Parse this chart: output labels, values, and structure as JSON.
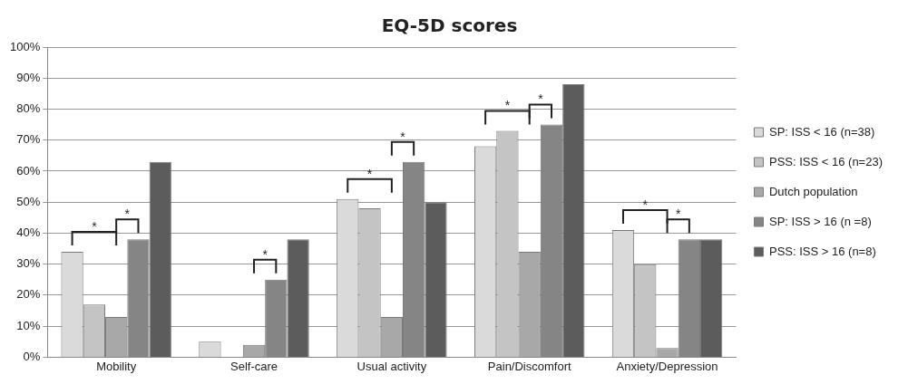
{
  "chart_data": {
    "type": "bar",
    "title": "EQ-5D scores",
    "categories": [
      "Mobility",
      "Self-care",
      "Usual activity",
      "Pain/Discomfort",
      "Anxiety/Depression"
    ],
    "series": [
      {
        "name": "SP: ISS < 16 (n=38)",
        "color": "#dadada",
        "values": [
          34,
          5,
          51,
          68,
          41
        ]
      },
      {
        "name": "PSS: ISS < 16 (n=23)",
        "color": "#c4c4c4",
        "values": [
          17,
          0,
          48,
          73,
          30
        ]
      },
      {
        "name": "Dutch population",
        "color": "#a8a8a8",
        "values": [
          13,
          4,
          13,
          34,
          3
        ]
      },
      {
        "name": "SP: ISS > 16 (n =8)",
        "color": "#858585",
        "values": [
          38,
          25,
          63,
          75,
          38
        ]
      },
      {
        "name": "PSS: ISS > 16 (n=8)",
        "color": "#5c5c5c",
        "values": [
          63,
          38,
          50,
          88,
          38
        ]
      }
    ],
    "ylim": [
      0,
      100
    ],
    "yticks": [
      {
        "value": 0,
        "label": "0%"
      },
      {
        "value": 10,
        "label": "10%"
      },
      {
        "value": 20,
        "label": "20%"
      },
      {
        "value": 30,
        "label": "30%"
      },
      {
        "value": 40,
        "label": "40%"
      },
      {
        "value": 50,
        "label": "50%"
      },
      {
        "value": 60,
        "label": "60%"
      },
      {
        "value": 70,
        "label": "70%"
      },
      {
        "value": 80,
        "label": "80%"
      },
      {
        "value": 90,
        "label": "90%"
      },
      {
        "value": 100,
        "label": "100%"
      }
    ],
    "grid": "y",
    "legend": "right",
    "annotations": [
      "*",
      "*",
      "*",
      "*",
      "*",
      "*",
      "*",
      "*",
      "*"
    ]
  }
}
